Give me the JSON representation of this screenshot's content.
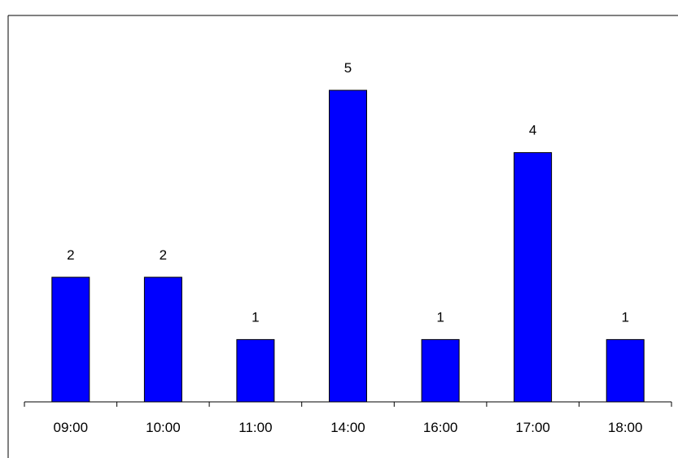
{
  "chart_data": {
    "type": "bar",
    "title": "",
    "xlabel": "",
    "ylabel": "",
    "categories": [
      "09:00",
      "10:00",
      "11:00",
      "14:00",
      "16:00",
      "17:00",
      "18:00"
    ],
    "values": [
      2,
      2,
      1,
      5,
      1,
      4,
      1
    ],
    "ylim": [
      0,
      5
    ],
    "grid": false,
    "legend": "none",
    "show_data_labels": true,
    "colors": {
      "bar_fill": "#0000FF",
      "bar_stroke": "#000000",
      "axis": "#000000",
      "background": "#FFFFFF"
    }
  }
}
